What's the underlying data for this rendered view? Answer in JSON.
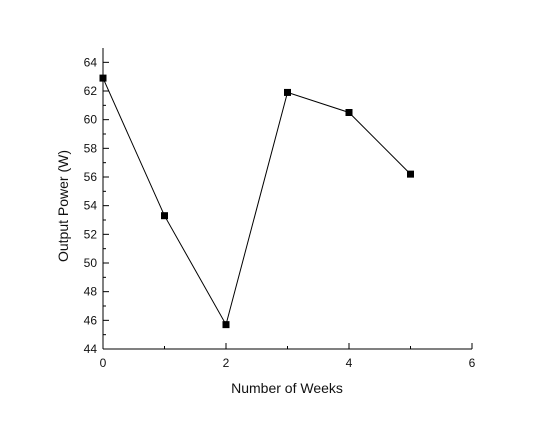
{
  "chart_data": {
    "type": "line",
    "title": "",
    "xlabel": "Number of Weeks",
    "ylabel": "Output Power (W)",
    "xlim": [
      0,
      6
    ],
    "ylim": [
      44,
      65
    ],
    "x_ticks": [
      0,
      2,
      4,
      6
    ],
    "y_ticks": [
      44,
      46,
      48,
      50,
      52,
      54,
      56,
      58,
      60,
      62,
      64
    ],
    "grid": false,
    "legend": "none",
    "marker": "square",
    "colors": {
      "line": "#000000",
      "marker": "#000000",
      "axis": "#000000"
    },
    "series": [
      {
        "x": [
          0,
          1,
          2,
          3,
          4,
          5
        ],
        "values": [
          62.9,
          53.3,
          45.7,
          61.9,
          60.5,
          56.2
        ]
      }
    ]
  }
}
